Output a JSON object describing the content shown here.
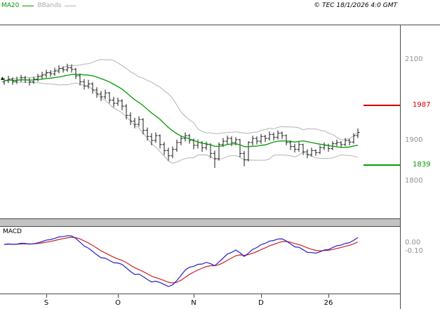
{
  "legend": {
    "ma20_label": "MA20",
    "bbands_label": "BBands"
  },
  "header": {
    "copyright": "© TEC 18/1/2026 4:0 GMT"
  },
  "macd_panel": {
    "title": "MACD"
  },
  "colors": {
    "ma20": "#009900",
    "bands": "#b3b3b3",
    "bars": "#1a1a1a",
    "resistance": "#cc0000",
    "support": "#009900",
    "macd_line": "#2222cc",
    "macd_signal": "#cc2222",
    "axis_text": "#909090",
    "frame": "#4a4a4a",
    "separator": "#c3c3c3"
  },
  "chart_data": {
    "type": "candlestick",
    "title": "",
    "panels": [
      "price",
      "macd"
    ],
    "overlays": [
      "MA20",
      "BBands"
    ],
    "price_axis": {
      "ticks": [
        {
          "value": 2100,
          "label": "2100"
        },
        {
          "value": 1900,
          "label": "1900"
        },
        {
          "value": 1800,
          "label": "1800"
        }
      ],
      "ylim": [
        1760,
        2190
      ]
    },
    "hlines": [
      {
        "value": 1987,
        "label": "1987",
        "color": "#cc0000",
        "role": "resistance"
      },
      {
        "value": 1839,
        "label": "1839",
        "color": "#009900",
        "role": "support"
      }
    ],
    "x_axis": {
      "ticks": [
        {
          "index": 10,
          "label": "S"
        },
        {
          "index": 27,
          "label": "O"
        },
        {
          "index": 45,
          "label": "N"
        },
        {
          "index": 61,
          "label": "D"
        },
        {
          "index": 77,
          "label": "26"
        }
      ]
    },
    "macd_axis": {
      "labels": [
        {
          "label": "0.00",
          "y": 340
        },
        {
          "label": "-0.10",
          "y": 352
        }
      ]
    },
    "indicators": {
      "ma_window": 14,
      "bb_mult": 2,
      "ema_fast": 8,
      "ema_slow": 17,
      "ema_signal": 6
    },
    "ohlc": [
      [
        2045,
        2055,
        2038,
        2048
      ],
      [
        2048,
        2060,
        2042,
        2052
      ],
      [
        2052,
        2056,
        2038,
        2046
      ],
      [
        2046,
        2058,
        2040,
        2050
      ],
      [
        2050,
        2062,
        2045,
        2055
      ],
      [
        2055,
        2060,
        2042,
        2050
      ],
      [
        2050,
        2055,
        2036,
        2045
      ],
      [
        2045,
        2058,
        2040,
        2052
      ],
      [
        2052,
        2065,
        2046,
        2058
      ],
      [
        2058,
        2070,
        2052,
        2062
      ],
      [
        2062,
        2075,
        2055,
        2068
      ],
      [
        2068,
        2074,
        2058,
        2065
      ],
      [
        2065,
        2080,
        2060,
        2072
      ],
      [
        2072,
        2086,
        2066,
        2078
      ],
      [
        2078,
        2084,
        2068,
        2075
      ],
      [
        2075,
        2090,
        2070,
        2080
      ],
      [
        2080,
        2088,
        2068,
        2076
      ],
      [
        2076,
        2080,
        2052,
        2060
      ],
      [
        2060,
        2066,
        2036,
        2045
      ],
      [
        2045,
        2052,
        2026,
        2035
      ],
      [
        2035,
        2050,
        2028,
        2040
      ],
      [
        2040,
        2044,
        2016,
        2025
      ],
      [
        2025,
        2032,
        2006,
        2015
      ],
      [
        2015,
        2022,
        1998,
        2008
      ],
      [
        2008,
        2026,
        2002,
        2018
      ],
      [
        2018,
        2020,
        1992,
        2000
      ],
      [
        2000,
        2008,
        1982,
        1992
      ],
      [
        1992,
        2006,
        1986,
        1998
      ],
      [
        1998,
        2002,
        1975,
        1985
      ],
      [
        1985,
        1990,
        1952,
        1962
      ],
      [
        1962,
        1970,
        1938,
        1948
      ],
      [
        1948,
        1956,
        1930,
        1940
      ],
      [
        1940,
        1960,
        1934,
        1952
      ],
      [
        1952,
        1955,
        1915,
        1925
      ],
      [
        1925,
        1932,
        1900,
        1910
      ],
      [
        1910,
        1918,
        1888,
        1900
      ],
      [
        1900,
        1920,
        1894,
        1912
      ],
      [
        1912,
        1915,
        1880,
        1890
      ],
      [
        1890,
        1896,
        1864,
        1875
      ],
      [
        1875,
        1882,
        1850,
        1862
      ],
      [
        1862,
        1885,
        1856,
        1878
      ],
      [
        1878,
        1902,
        1872,
        1895
      ],
      [
        1895,
        1912,
        1888,
        1905
      ],
      [
        1905,
        1920,
        1898,
        1912
      ],
      [
        1912,
        1916,
        1892,
        1900
      ],
      [
        1900,
        1905,
        1878,
        1888
      ],
      [
        1888,
        1902,
        1880,
        1895
      ],
      [
        1895,
        1898,
        1872,
        1882
      ],
      [
        1882,
        1897,
        1876,
        1890
      ],
      [
        1890,
        1893,
        1856,
        1868
      ],
      [
        1868,
        1875,
        1832,
        1855
      ],
      [
        1855,
        1895,
        1850,
        1890
      ],
      [
        1890,
        1906,
        1884,
        1898
      ],
      [
        1898,
        1912,
        1890,
        1905
      ],
      [
        1905,
        1910,
        1886,
        1895
      ],
      [
        1895,
        1908,
        1888,
        1902
      ],
      [
        1902,
        1904,
        1858,
        1868
      ],
      [
        1868,
        1874,
        1836,
        1852
      ],
      [
        1852,
        1898,
        1848,
        1895
      ],
      [
        1895,
        1912,
        1888,
        1905
      ],
      [
        1905,
        1910,
        1890,
        1898
      ],
      [
        1898,
        1916,
        1892,
        1910
      ],
      [
        1910,
        1914,
        1896,
        1905
      ],
      [
        1905,
        1922,
        1900,
        1915
      ],
      [
        1915,
        1920,
        1900,
        1908
      ],
      [
        1908,
        1925,
        1902,
        1918
      ],
      [
        1918,
        1922,
        1904,
        1912
      ],
      [
        1912,
        1915,
        1888,
        1895
      ],
      [
        1895,
        1900,
        1876,
        1885
      ],
      [
        1885,
        1892,
        1870,
        1878
      ],
      [
        1878,
        1896,
        1872,
        1890
      ],
      [
        1890,
        1892,
        1864,
        1872
      ],
      [
        1872,
        1878,
        1856,
        1865
      ],
      [
        1865,
        1882,
        1860,
        1875
      ],
      [
        1875,
        1878,
        1862,
        1870
      ],
      [
        1870,
        1888,
        1866,
        1882
      ],
      [
        1882,
        1895,
        1876,
        1888
      ],
      [
        1888,
        1892,
        1872,
        1880
      ],
      [
        1880,
        1898,
        1876,
        1892
      ],
      [
        1892,
        1902,
        1886,
        1895
      ],
      [
        1895,
        1898,
        1882,
        1890
      ],
      [
        1890,
        1906,
        1886,
        1900
      ],
      [
        1900,
        1904,
        1888,
        1896
      ],
      [
        1896,
        1918,
        1892,
        1912
      ],
      [
        1912,
        1930,
        1906,
        1920
      ]
    ]
  }
}
